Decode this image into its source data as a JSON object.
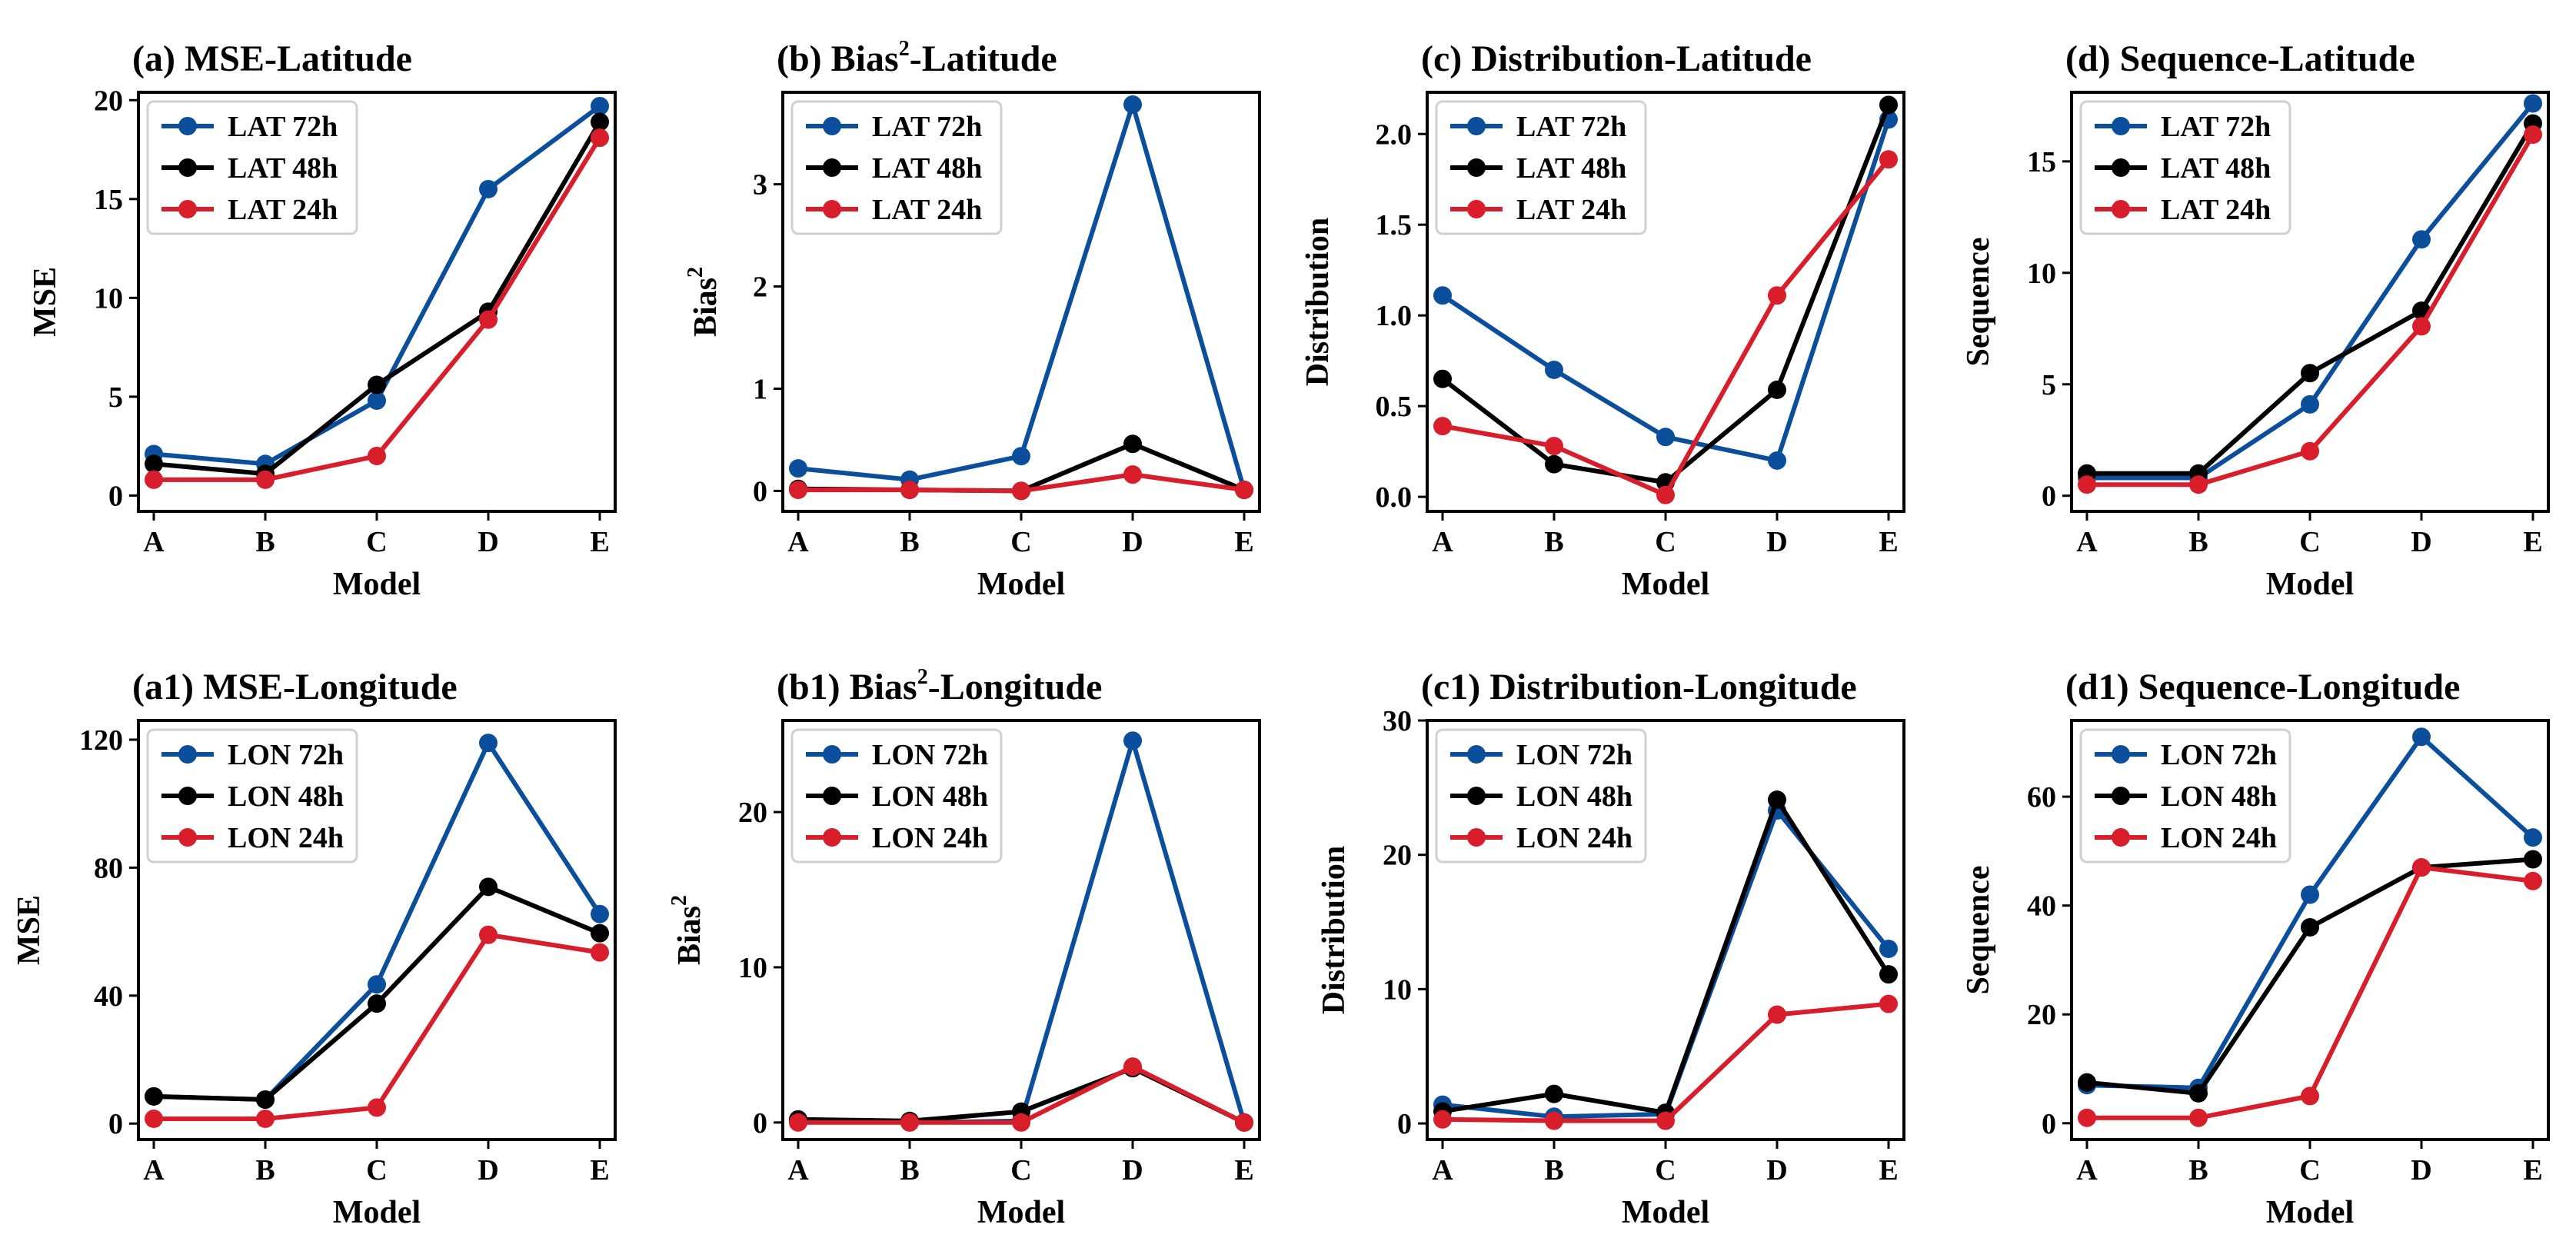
{
  "colors": {
    "h72": "#0b4f9c",
    "h48": "#000000",
    "h24": "#d81e2a"
  },
  "chart_data": [
    {
      "type": "line",
      "id": "a",
      "title": "(a) MSE-Latitude",
      "xlabel": "Model",
      "ylabel": "MSE",
      "categories": [
        "A",
        "B",
        "C",
        "D",
        "E"
      ],
      "ylim": [
        -0.8,
        20.4
      ],
      "yticks": [
        0,
        5,
        10,
        15,
        20
      ],
      "yticklabels": [
        "0",
        "5",
        "10",
        "15",
        "20"
      ],
      "series": [
        {
          "name": "LAT 72h",
          "color": "#0b4f9c",
          "values": [
            2.1,
            1.6,
            4.8,
            15.5,
            19.7
          ]
        },
        {
          "name": "LAT 48h",
          "color": "#000000",
          "values": [
            1.6,
            1.1,
            5.6,
            9.3,
            18.9
          ]
        },
        {
          "name": "LAT 24h",
          "color": "#d81e2a",
          "values": [
            0.8,
            0.8,
            2.0,
            8.9,
            18.1
          ]
        }
      ]
    },
    {
      "type": "line",
      "id": "b",
      "title": "(b) Bias",
      "title_sup": "2",
      "title_after": "-Latitude",
      "xlabel": "Model",
      "ylabel": "Bias",
      "ylabel_sup": "2",
      "categories": [
        "A",
        "B",
        "C",
        "D",
        "E"
      ],
      "ylim": [
        -0.2,
        3.9
      ],
      "yticks": [
        0,
        1,
        2,
        3
      ],
      "yticklabels": [
        "0",
        "1",
        "2",
        "3"
      ],
      "series": [
        {
          "name": "LAT 72h",
          "color": "#0b4f9c",
          "values": [
            0.22,
            0.11,
            0.34,
            3.78,
            0.01
          ]
        },
        {
          "name": "LAT 48h",
          "color": "#000000",
          "values": [
            0.02,
            0.01,
            0.0,
            0.46,
            0.01
          ]
        },
        {
          "name": "LAT 24h",
          "color": "#d81e2a",
          "values": [
            0.01,
            0.01,
            0.0,
            0.16,
            0.01
          ]
        }
      ]
    },
    {
      "type": "line",
      "id": "c",
      "title": "(c) Distribution-Latitude",
      "xlabel": "Model",
      "ylabel": "Distribution",
      "categories": [
        "A",
        "B",
        "C",
        "D",
        "E"
      ],
      "ylim": [
        -0.08,
        2.23
      ],
      "yticks": [
        0,
        0.5,
        1,
        1.5,
        2
      ],
      "yticklabels": [
        "0.0",
        "0.5",
        "1.0",
        "1.5",
        "2.0"
      ],
      "series": [
        {
          "name": "LAT 72h",
          "color": "#0b4f9c",
          "values": [
            1.11,
            0.7,
            0.33,
            0.2,
            2.08
          ]
        },
        {
          "name": "LAT 48h",
          "color": "#000000",
          "values": [
            0.65,
            0.18,
            0.08,
            0.59,
            2.16
          ]
        },
        {
          "name": "LAT 24h",
          "color": "#d81e2a",
          "values": [
            0.39,
            0.28,
            0.01,
            1.11,
            1.86
          ]
        }
      ]
    },
    {
      "type": "line",
      "id": "d",
      "title": "(d) Sequence-Latitude",
      "xlabel": "Model",
      "ylabel": "Sequence",
      "categories": [
        "A",
        "B",
        "C",
        "D",
        "E"
      ],
      "ylim": [
        -0.7,
        18.1
      ],
      "yticks": [
        0,
        5,
        10,
        15
      ],
      "yticklabels": [
        "0",
        "5",
        "10",
        "15"
      ],
      "series": [
        {
          "name": "LAT 72h",
          "color": "#0b4f9c",
          "values": [
            0.8,
            0.8,
            4.1,
            11.5,
            17.6
          ]
        },
        {
          "name": "LAT 48h",
          "color": "#000000",
          "values": [
            1.0,
            1.0,
            5.5,
            8.3,
            16.7
          ]
        },
        {
          "name": "LAT 24h",
          "color": "#d81e2a",
          "values": [
            0.5,
            0.5,
            2.0,
            7.6,
            16.2
          ]
        }
      ]
    },
    {
      "type": "line",
      "id": "a1",
      "title": "(a1) MSE-Longitude",
      "xlabel": "Model",
      "ylabel": "MSE",
      "categories": [
        "A",
        "B",
        "C",
        "D",
        "E"
      ],
      "ylim": [
        -5,
        126
      ],
      "yticks": [
        0,
        40,
        80,
        120
      ],
      "yticklabels": [
        "0",
        "40",
        "80",
        "120"
      ],
      "series": [
        {
          "name": "LON 72h",
          "color": "#0b4f9c",
          "values": [
            8.5,
            7.5,
            43.5,
            119,
            65.5
          ]
        },
        {
          "name": "LON 48h",
          "color": "#000000",
          "values": [
            8.5,
            7.5,
            37.5,
            74,
            59.5
          ]
        },
        {
          "name": "LON 24h",
          "color": "#d81e2a",
          "values": [
            1.5,
            1.5,
            5.0,
            59,
            53.5
          ]
        }
      ]
    },
    {
      "type": "line",
      "id": "b1",
      "title": "(b1) Bias",
      "title_sup": "2",
      "title_after": "-Longitude",
      "xlabel": "Model",
      "ylabel": "Bias",
      "ylabel_sup": "2",
      "categories": [
        "A",
        "B",
        "C",
        "D",
        "E"
      ],
      "ylim": [
        -1.1,
        25.9
      ],
      "yticks": [
        0,
        10,
        20
      ],
      "yticklabels": [
        "0",
        "10",
        "20"
      ],
      "series": [
        {
          "name": "LON 72h",
          "color": "#0b4f9c",
          "values": [
            0.1,
            0.0,
            0.1,
            24.6,
            0.0
          ]
        },
        {
          "name": "LON 48h",
          "color": "#000000",
          "values": [
            0.2,
            0.1,
            0.7,
            3.5,
            0.0
          ]
        },
        {
          "name": "LON 24h",
          "color": "#d81e2a",
          "values": [
            0.0,
            0.0,
            0.0,
            3.6,
            0.0
          ]
        }
      ]
    },
    {
      "type": "line",
      "id": "c1",
      "title": "(c1) Distribution-Longitude",
      "xlabel": "Model",
      "ylabel": "Distribution",
      "categories": [
        "A",
        "B",
        "C",
        "D",
        "E"
      ],
      "ylim": [
        -1.2,
        30.0
      ],
      "yticks": [
        0,
        10,
        20,
        30
      ],
      "yticklabels": [
        "0",
        "10",
        "20",
        "30"
      ],
      "series": [
        {
          "name": "LON 72h",
          "color": "#0b4f9c",
          "values": [
            1.4,
            0.5,
            0.7,
            23.3,
            13.0
          ]
        },
        {
          "name": "LON 48h",
          "color": "#000000",
          "values": [
            0.9,
            2.2,
            0.8,
            24.1,
            11.1
          ]
        },
        {
          "name": "LON 24h",
          "color": "#d81e2a",
          "values": [
            0.3,
            0.2,
            0.2,
            8.1,
            8.9
          ]
        }
      ]
    },
    {
      "type": "line",
      "id": "d1",
      "title": "(d1) Sequence-Longitude",
      "xlabel": "Model",
      "ylabel": "Sequence",
      "categories": [
        "A",
        "B",
        "C",
        "D",
        "E"
      ],
      "ylim": [
        -3,
        74
      ],
      "yticks": [
        0,
        20,
        40,
        60
      ],
      "yticklabels": [
        "0",
        "20",
        "40",
        "60"
      ],
      "series": [
        {
          "name": "LON 72h",
          "color": "#0b4f9c",
          "values": [
            7.0,
            6.5,
            42.0,
            71.0,
            52.5
          ]
        },
        {
          "name": "LON 48h",
          "color": "#000000",
          "values": [
            7.5,
            5.5,
            36.0,
            47.0,
            48.5
          ]
        },
        {
          "name": "LON 24h",
          "color": "#d81e2a",
          "values": [
            1.0,
            1.0,
            5.0,
            47.0,
            44.5
          ]
        }
      ]
    }
  ]
}
